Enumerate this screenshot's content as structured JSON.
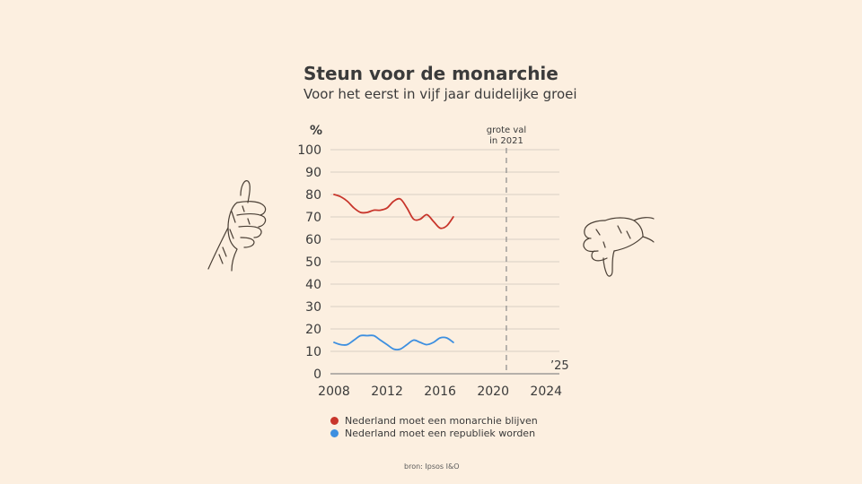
{
  "chart_data": {
    "type": "line",
    "title": "Steun voor de monarchie",
    "subtitle": "Voor het eerst in vijf jaar duidelijke groei",
    "ylabel": "%",
    "xlabel": "",
    "xlim": [
      2008,
      2025
    ],
    "ylim": [
      0,
      100
    ],
    "y_ticks": [
      0,
      10,
      20,
      30,
      40,
      50,
      60,
      70,
      80,
      90,
      100
    ],
    "x_ticks": [
      2008,
      2012,
      2016,
      2020,
      2024
    ],
    "x_end_label": "’25",
    "series": [
      {
        "name": "Nederland moet een monarchie blijven",
        "color": "#c8352b",
        "x": [
          2008,
          2008.5,
          2009,
          2009.5,
          2010,
          2010.5,
          2011,
          2011.5,
          2012,
          2012.5,
          2013,
          2013.5,
          2014,
          2014.5,
          2015,
          2015.5,
          2016,
          2016.5,
          2017
        ],
        "y": [
          80,
          79,
          77,
          74,
          72,
          72,
          73,
          73,
          74,
          77,
          78,
          74,
          69,
          69,
          71,
          68,
          65,
          66,
          70
        ]
      },
      {
        "name": "Nederland moet een republiek worden",
        "color": "#3d8fe0",
        "x": [
          2008,
          2008.5,
          2009,
          2009.5,
          2010,
          2010.5,
          2011,
          2011.5,
          2012,
          2012.5,
          2013,
          2013.5,
          2014,
          2014.5,
          2015,
          2015.5,
          2016,
          2016.5,
          2017
        ],
        "y": [
          14,
          13,
          13,
          15,
          17,
          17,
          17,
          15,
          13,
          11,
          11,
          13,
          15,
          14,
          13,
          14,
          16,
          16,
          14
        ]
      }
    ],
    "annotations": [
      {
        "x": 2021,
        "text_lines": [
          "grote val",
          "in 2021"
        ],
        "style": "dashed-vertical"
      }
    ]
  },
  "legend": [
    {
      "label": "Nederland moet een monarchie blijven",
      "color": "#c8352b"
    },
    {
      "label": "Nederland moet een republiek worden",
      "color": "#3d8fe0"
    }
  ],
  "source": "bron: Ipsos I&O",
  "icons": [
    "thumbs-up-icon",
    "thumbs-down-icon"
  ]
}
